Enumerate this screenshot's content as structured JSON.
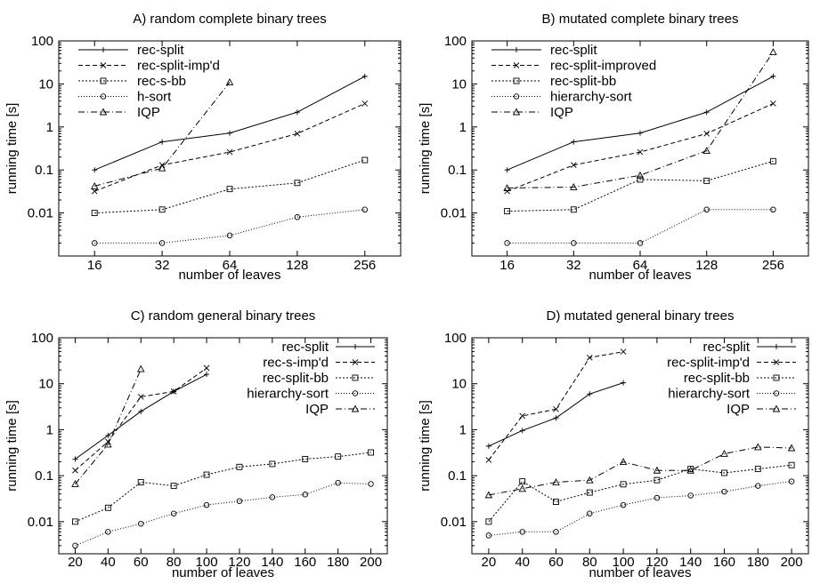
{
  "chart_data": [
    {
      "type": "line",
      "title": "A) random complete binary trees",
      "xlabel": "number of leaves",
      "ylabel": "running time [s]",
      "xscale": "log2",
      "yscale": "log",
      "x_ticks": [
        "16",
        "32",
        "64",
        "128",
        "256"
      ],
      "y_ticks": [
        "100",
        "10",
        "1",
        "0.1",
        "0.01"
      ],
      "ylim": [
        0.001,
        100
      ],
      "legend_position": "top-left",
      "series": [
        {
          "name": "rec-split",
          "marker": "plus",
          "dash": "solid",
          "x": [
            16,
            32,
            64,
            128,
            256
          ],
          "y": [
            0.1,
            0.45,
            0.72,
            2.2,
            15
          ]
        },
        {
          "name": "rec-split-imp'd",
          "marker": "cross",
          "dash": "dashed",
          "x": [
            16,
            32,
            64,
            128,
            256
          ],
          "y": [
            0.032,
            0.13,
            0.26,
            0.7,
            3.5
          ]
        },
        {
          "name": "rec-s-bb",
          "marker": "square",
          "dash": "dotted-short",
          "x": [
            16,
            32,
            64,
            128,
            256
          ],
          "y": [
            0.01,
            0.012,
            0.036,
            0.05,
            0.17
          ]
        },
        {
          "name": "h-sort",
          "marker": "circle",
          "dash": "dotted",
          "x": [
            16,
            32,
            64,
            128,
            256
          ],
          "y": [
            0.002,
            0.002,
            0.003,
            0.008,
            0.012
          ]
        },
        {
          "name": "IQP",
          "marker": "triangle",
          "dash": "dash-dot",
          "x": [
            16,
            32,
            64
          ],
          "y": [
            0.042,
            0.11,
            11
          ]
        }
      ]
    },
    {
      "type": "line",
      "title": "B) mutated complete binary trees",
      "xlabel": "number of leaves",
      "ylabel": "running time [s]",
      "xscale": "log2",
      "yscale": "log",
      "x_ticks": [
        "16",
        "32",
        "64",
        "128",
        "256"
      ],
      "y_ticks": [
        "100",
        "10",
        "1",
        "0.1",
        "0.01"
      ],
      "ylim": [
        0.001,
        100
      ],
      "legend_position": "top-left",
      "series": [
        {
          "name": "rec-split",
          "marker": "plus",
          "dash": "solid",
          "x": [
            16,
            32,
            64,
            128,
            256
          ],
          "y": [
            0.1,
            0.45,
            0.72,
            2.2,
            15
          ]
        },
        {
          "name": "rec-split-improved",
          "marker": "cross",
          "dash": "dashed",
          "x": [
            16,
            32,
            64,
            128,
            256
          ],
          "y": [
            0.032,
            0.13,
            0.26,
            0.7,
            3.5
          ]
        },
        {
          "name": "rec-split-bb",
          "marker": "square",
          "dash": "dotted-short",
          "x": [
            16,
            32,
            64,
            128,
            256
          ],
          "y": [
            0.011,
            0.012,
            0.06,
            0.056,
            0.16
          ]
        },
        {
          "name": "hierarchy-sort",
          "marker": "circle",
          "dash": "dotted",
          "x": [
            16,
            32,
            64,
            128,
            256
          ],
          "y": [
            0.002,
            0.002,
            0.002,
            0.012,
            0.012
          ]
        },
        {
          "name": "IQP",
          "marker": "triangle",
          "dash": "dash-dot",
          "x": [
            16,
            32,
            64,
            128,
            256
          ],
          "y": [
            0.038,
            0.04,
            0.075,
            0.28,
            55
          ]
        }
      ]
    },
    {
      "type": "line",
      "title": "C) random general binary trees",
      "xlabel": "number of leaves",
      "ylabel": "running time [s]",
      "xscale": "linear",
      "yscale": "log",
      "x_ticks": [
        "20",
        "40",
        "60",
        "80",
        "100",
        "120",
        "140",
        "160",
        "180",
        "200"
      ],
      "y_ticks": [
        "100",
        "10",
        "1",
        "0.1",
        "0.01"
      ],
      "xlim": [
        10,
        210
      ],
      "ylim": [
        0.002,
        100
      ],
      "legend_position": "top-right",
      "series": [
        {
          "name": "rec-split",
          "marker": "plus",
          "dash": "solid",
          "x": [
            20,
            40,
            60,
            80,
            100
          ],
          "y": [
            0.23,
            0.75,
            2.5,
            6.8,
            16
          ]
        },
        {
          "name": "rec-s-imp'd",
          "marker": "cross",
          "dash": "dashed",
          "x": [
            20,
            40,
            60,
            80,
            100
          ],
          "y": [
            0.13,
            0.55,
            5.2,
            6.8,
            22
          ]
        },
        {
          "name": "rec-split-bb",
          "marker": "square",
          "dash": "dotted-short",
          "x": [
            20,
            40,
            60,
            80,
            100,
            120,
            140,
            160,
            180,
            200
          ],
          "y": [
            0.01,
            0.02,
            0.072,
            0.06,
            0.105,
            0.155,
            0.18,
            0.23,
            0.26,
            0.32
          ]
        },
        {
          "name": "hierarchy-sort",
          "marker": "circle",
          "dash": "dotted",
          "x": [
            20,
            40,
            60,
            80,
            100,
            120,
            140,
            160,
            180,
            200
          ],
          "y": [
            0.003,
            0.006,
            0.009,
            0.015,
            0.023,
            0.028,
            0.034,
            0.039,
            0.07,
            0.066
          ]
        },
        {
          "name": "IQP",
          "marker": "triangle",
          "dash": "dash-dot",
          "x": [
            20,
            40,
            60
          ],
          "y": [
            0.066,
            0.48,
            21
          ]
        }
      ]
    },
    {
      "type": "line",
      "title": "D) mutated general binary trees",
      "xlabel": "number of leaves",
      "ylabel": "running time [s]",
      "xscale": "linear",
      "yscale": "log",
      "x_ticks": [
        "20",
        "40",
        "60",
        "80",
        "100",
        "120",
        "140",
        "160",
        "180",
        "200"
      ],
      "y_ticks": [
        "100",
        "10",
        "1",
        "0.1",
        "0.01"
      ],
      "xlim": [
        10,
        210
      ],
      "ylim": [
        0.002,
        100
      ],
      "legend_position": "top-right",
      "series": [
        {
          "name": "rec-split",
          "marker": "plus",
          "dash": "solid",
          "x": [
            20,
            40,
            60,
            80,
            100
          ],
          "y": [
            0.44,
            0.96,
            1.8,
            6.0,
            10.5
          ]
        },
        {
          "name": "rec-split-imp'd",
          "marker": "cross",
          "dash": "dashed",
          "x": [
            20,
            40,
            60,
            80,
            100
          ],
          "y": [
            0.22,
            2.0,
            2.8,
            37,
            50
          ]
        },
        {
          "name": "rec-split-bb",
          "marker": "square",
          "dash": "dotted-short",
          "x": [
            20,
            40,
            60,
            80,
            100,
            120,
            140,
            160,
            180,
            200
          ],
          "y": [
            0.01,
            0.075,
            0.027,
            0.043,
            0.065,
            0.08,
            0.14,
            0.115,
            0.14,
            0.17
          ]
        },
        {
          "name": "hierarchy-sort",
          "marker": "circle",
          "dash": "dotted",
          "x": [
            20,
            40,
            60,
            80,
            100,
            120,
            140,
            160,
            180,
            200
          ],
          "y": [
            0.005,
            0.006,
            0.006,
            0.015,
            0.023,
            0.033,
            0.037,
            0.045,
            0.06,
            0.075
          ]
        },
        {
          "name": "IQP",
          "marker": "triangle",
          "dash": "dash-dot",
          "x": [
            20,
            40,
            60,
            80,
            100,
            120,
            140,
            160,
            180,
            200
          ],
          "y": [
            0.038,
            0.052,
            0.072,
            0.08,
            0.2,
            0.13,
            0.13,
            0.3,
            0.42,
            0.4
          ]
        }
      ]
    }
  ]
}
